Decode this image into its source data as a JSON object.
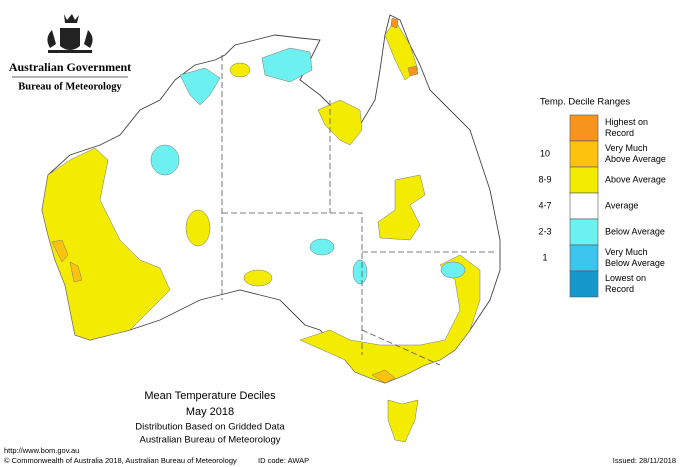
{
  "header": {
    "government": "Australian Government",
    "bureau": "Bureau of Meteorology"
  },
  "legend": {
    "title": "Temp. Decile Ranges",
    "items": [
      {
        "label": "Highest on Record",
        "color": "#f7941d"
      },
      {
        "range": "10",
        "label": "Very Much Above Average",
        "color": "#fdc20e"
      },
      {
        "range": "8-9",
        "label": "Above Average",
        "color": "#f4ec00"
      },
      {
        "range": "4-7",
        "label": "Average",
        "color": "#ffffff"
      },
      {
        "range": "2-3",
        "label": "Below Average",
        "color": "#6cf0f0"
      },
      {
        "range": "1",
        "label": "Very Much Below Average",
        "color": "#3cc6ee"
      },
      {
        "label": "Lowest on Record",
        "color": "#1798cc"
      }
    ]
  },
  "caption": {
    "title": "Mean Temperature Deciles",
    "period": "May 2018",
    "method": "Distribution Based on Gridded Data",
    "source": "Australian Bureau of Meteorology"
  },
  "footer": {
    "url": "http://www.bom.gov.au",
    "copyright": "© Commonwealth of Australia 2018, Australian Bureau of Meteorology",
    "id_code": "ID code: AWAP",
    "issued": "Issued: 28/11/2018"
  }
}
